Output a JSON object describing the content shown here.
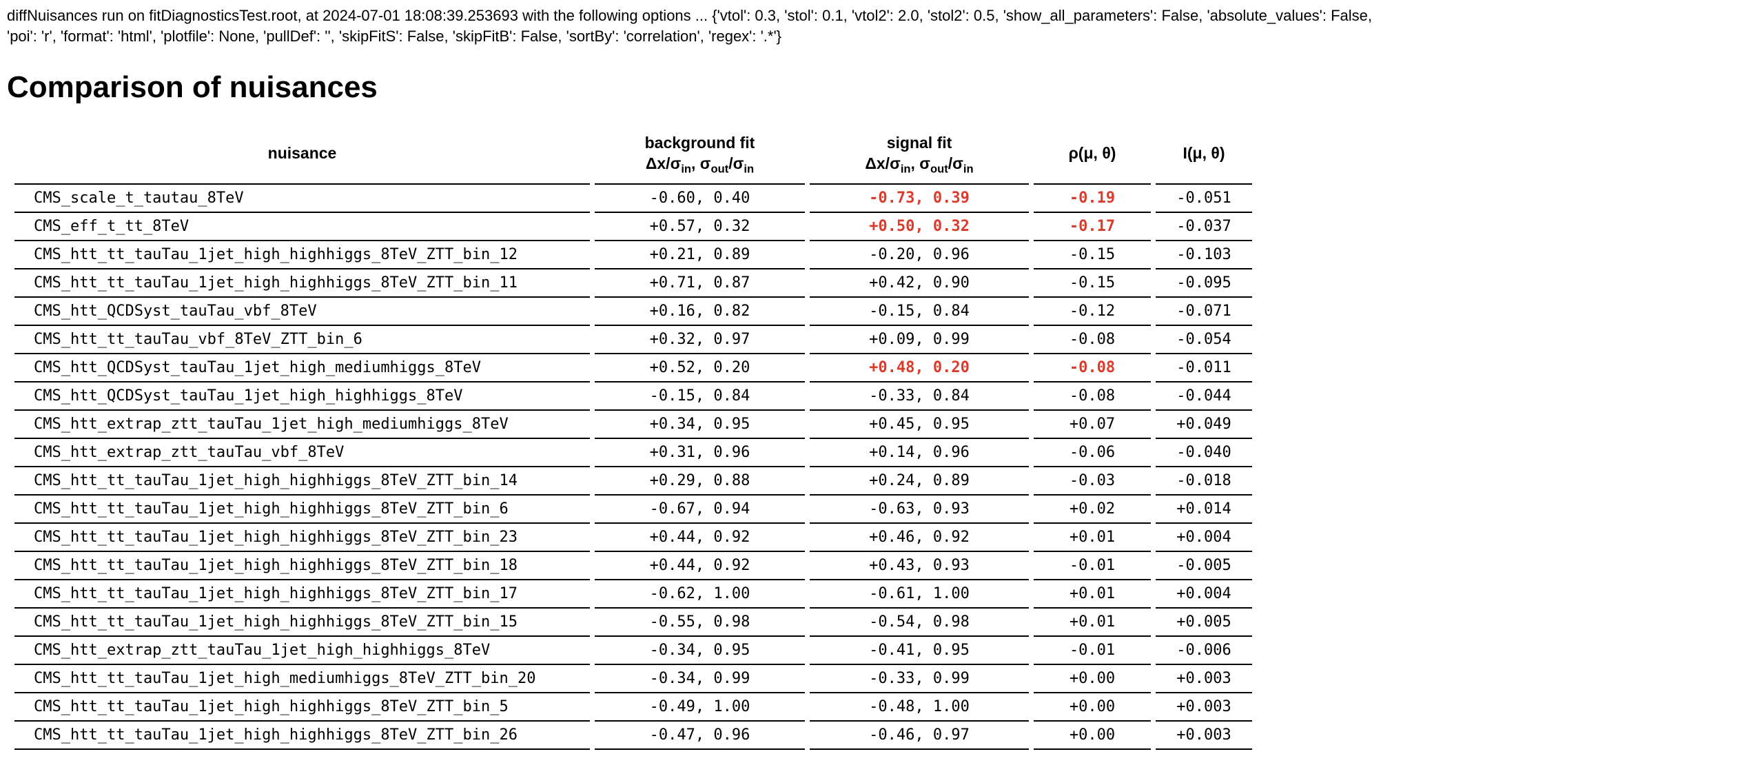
{
  "meta": {
    "options_line1": "diffNuisances run on fitDiagnosticsTest.root, at 2024-07-01 18:08:39.253693 with the following options ... {'vtol': 0.3, 'stol': 0.1, 'vtol2': 2.0, 'stol2': 0.5, 'show_all_parameters': False, 'absolute_values': False,",
    "options_line2": "'poi': 'r', 'format': 'html', 'plotfile': None, 'pullDef': '', 'skipFitS': False, 'skipFitB': False, 'sortBy': 'correlation', 'regex': '.*'}"
  },
  "title": "Comparison of nuisances",
  "colors": {
    "highlight_red": "#da3b2b",
    "text": "#000000",
    "background": "#ffffff"
  },
  "table": {
    "headers": {
      "nuisance": "nuisance",
      "background_fit": "background fit",
      "signal_fit": "signal fit",
      "fit_formula_parts": {
        "p1": "Δx/σ",
        "sub1": "in",
        "p2": ", σ",
        "sub2": "out",
        "p3": "/σ",
        "sub3": "in"
      },
      "rho": "ρ(μ, θ)",
      "info": "I(μ, θ)"
    },
    "rows": [
      {
        "nuisance": "CMS_scale_t_tautau_8TeV",
        "background_fit": "-0.60, 0.40",
        "signal_fit": "-0.73, 0.39",
        "signal_fit_highlight": true,
        "rho": "-0.19",
        "rho_highlight": true,
        "info": "-0.051"
      },
      {
        "nuisance": "CMS_eff_t_tt_8TeV",
        "background_fit": "+0.57, 0.32",
        "signal_fit": "+0.50, 0.32",
        "signal_fit_highlight": true,
        "rho": "-0.17",
        "rho_highlight": true,
        "info": "-0.037"
      },
      {
        "nuisance": "CMS_htt_tt_tauTau_1jet_high_highhiggs_8TeV_ZTT_bin_12",
        "background_fit": "+0.21, 0.89",
        "signal_fit": "-0.20, 0.96",
        "rho": "-0.15",
        "info": "-0.103"
      },
      {
        "nuisance": "CMS_htt_tt_tauTau_1jet_high_highhiggs_8TeV_ZTT_bin_11",
        "background_fit": "+0.71, 0.87",
        "signal_fit": "+0.42, 0.90",
        "rho": "-0.15",
        "info": "-0.095"
      },
      {
        "nuisance": "CMS_htt_QCDSyst_tauTau_vbf_8TeV",
        "background_fit": "+0.16, 0.82",
        "signal_fit": "-0.15, 0.84",
        "rho": "-0.12",
        "info": "-0.071"
      },
      {
        "nuisance": "CMS_htt_tt_tauTau_vbf_8TeV_ZTT_bin_6",
        "background_fit": "+0.32, 0.97",
        "signal_fit": "+0.09, 0.99",
        "rho": "-0.08",
        "info": "-0.054"
      },
      {
        "nuisance": "CMS_htt_QCDSyst_tauTau_1jet_high_mediumhiggs_8TeV",
        "background_fit": "+0.52, 0.20",
        "signal_fit": "+0.48, 0.20",
        "signal_fit_highlight": true,
        "rho": "-0.08",
        "rho_highlight": true,
        "info": "-0.011"
      },
      {
        "nuisance": "CMS_htt_QCDSyst_tauTau_1jet_high_highhiggs_8TeV",
        "background_fit": "-0.15, 0.84",
        "signal_fit": "-0.33, 0.84",
        "rho": "-0.08",
        "info": "-0.044"
      },
      {
        "nuisance": "CMS_htt_extrap_ztt_tauTau_1jet_high_mediumhiggs_8TeV",
        "background_fit": "+0.34, 0.95",
        "signal_fit": "+0.45, 0.95",
        "rho": "+0.07",
        "info": "+0.049"
      },
      {
        "nuisance": "CMS_htt_extrap_ztt_tauTau_vbf_8TeV",
        "background_fit": "+0.31, 0.96",
        "signal_fit": "+0.14, 0.96",
        "rho": "-0.06",
        "info": "-0.040"
      },
      {
        "nuisance": "CMS_htt_tt_tauTau_1jet_high_highhiggs_8TeV_ZTT_bin_14",
        "background_fit": "+0.29, 0.88",
        "signal_fit": "+0.24, 0.89",
        "rho": "-0.03",
        "info": "-0.018"
      },
      {
        "nuisance": "CMS_htt_tt_tauTau_1jet_high_highhiggs_8TeV_ZTT_bin_6",
        "background_fit": "-0.67, 0.94",
        "signal_fit": "-0.63, 0.93",
        "rho": "+0.02",
        "info": "+0.014"
      },
      {
        "nuisance": "CMS_htt_tt_tauTau_1jet_high_highhiggs_8TeV_ZTT_bin_23",
        "background_fit": "+0.44, 0.92",
        "signal_fit": "+0.46, 0.92",
        "rho": "+0.01",
        "info": "+0.004"
      },
      {
        "nuisance": "CMS_htt_tt_tauTau_1jet_high_highhiggs_8TeV_ZTT_bin_18",
        "background_fit": "+0.44, 0.92",
        "signal_fit": "+0.43, 0.93",
        "rho": "-0.01",
        "info": "-0.005"
      },
      {
        "nuisance": "CMS_htt_tt_tauTau_1jet_high_highhiggs_8TeV_ZTT_bin_17",
        "background_fit": "-0.62, 1.00",
        "signal_fit": "-0.61, 1.00",
        "rho": "+0.01",
        "info": "+0.004"
      },
      {
        "nuisance": "CMS_htt_tt_tauTau_1jet_high_highhiggs_8TeV_ZTT_bin_15",
        "background_fit": "-0.55, 0.98",
        "signal_fit": "-0.54, 0.98",
        "rho": "+0.01",
        "info": "+0.005"
      },
      {
        "nuisance": "CMS_htt_extrap_ztt_tauTau_1jet_high_highhiggs_8TeV",
        "background_fit": "-0.34, 0.95",
        "signal_fit": "-0.41, 0.95",
        "rho": "-0.01",
        "info": "-0.006"
      },
      {
        "nuisance": "CMS_htt_tt_tauTau_1jet_high_mediumhiggs_8TeV_ZTT_bin_20",
        "background_fit": "-0.34, 0.99",
        "signal_fit": "-0.33, 0.99",
        "rho": "+0.00",
        "info": "+0.003"
      },
      {
        "nuisance": "CMS_htt_tt_tauTau_1jet_high_highhiggs_8TeV_ZTT_bin_5",
        "background_fit": "-0.49, 1.00",
        "signal_fit": "-0.48, 1.00",
        "rho": "+0.00",
        "info": "+0.003"
      },
      {
        "nuisance": "CMS_htt_tt_tauTau_1jet_high_highhiggs_8TeV_ZTT_bin_26",
        "background_fit": "-0.47, 0.96",
        "signal_fit": "-0.46, 0.97",
        "rho": "+0.00",
        "info": "+0.003"
      }
    ]
  }
}
